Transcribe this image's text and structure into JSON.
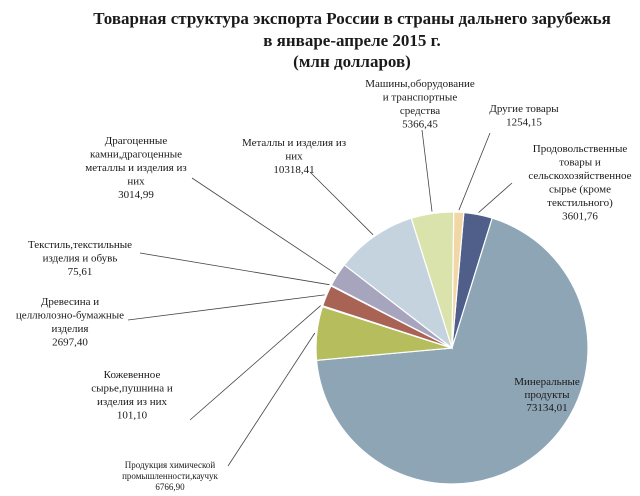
{
  "chart_data": {
    "type": "pie",
    "title_lines": [
      "Товарная структура экспорта России в страны дальнего зарубежья",
      "в январе-апреле 2015 г.",
      "(млн долларов)"
    ],
    "slices": [
      {
        "label_lines": [
          "Продовольственные",
          "товары и",
          "сельскохозяйственное",
          "сырье (кроме",
          "текстильного)"
        ],
        "value_text": "3601,76",
        "value": 3601.76,
        "color": "#4f5f8a"
      },
      {
        "label_lines": [
          "Минеральные",
          "продукты"
        ],
        "value_text": "73134,01",
        "value": 73134.01,
        "color": "#8ea5b5"
      },
      {
        "label_lines": [
          "Продукция химической",
          "промышленности,каучук"
        ],
        "value_text": "6766,90",
        "value": 6766.9,
        "color": "#b5bd5d"
      },
      {
        "label_lines": [
          "Кожевенное",
          "сырье,пушнина и",
          "изделия из них"
        ],
        "value_text": "101,10",
        "value": 101.1,
        "color": "#5c3d52"
      },
      {
        "label_lines": [
          "Древесина и",
          "целлюлозно-бумажные",
          "изделия"
        ],
        "value_text": "2697,40",
        "value": 2697.4,
        "color": "#a86355"
      },
      {
        "label_lines": [
          "Текстиль,текстильные",
          "изделия и обувь"
        ],
        "value_text": "75,61",
        "value": 75.61,
        "color": "#8a6b48"
      },
      {
        "label_lines": [
          "Драгоценные",
          "камни,драгоценные",
          "металлы и изделия из",
          "них"
        ],
        "value_text": "3014,99",
        "value": 3014.99,
        "color": "#a7a5bd"
      },
      {
        "label_lines": [
          "Металлы и изделия из",
          "них"
        ],
        "value_text": "10318,41",
        "value": 10318.41,
        "color": "#c5d3df"
      },
      {
        "label_lines": [
          "Машины,оборудование",
          "и транспортные",
          "средства"
        ],
        "value_text": "5366,45",
        "value": 5366.45,
        "color": "#dbe3ad"
      },
      {
        "label_lines": [
          "Другие товары"
        ],
        "value_text": "1254,15",
        "value": 1254.15,
        "color": "#f1d7a6"
      }
    ]
  }
}
